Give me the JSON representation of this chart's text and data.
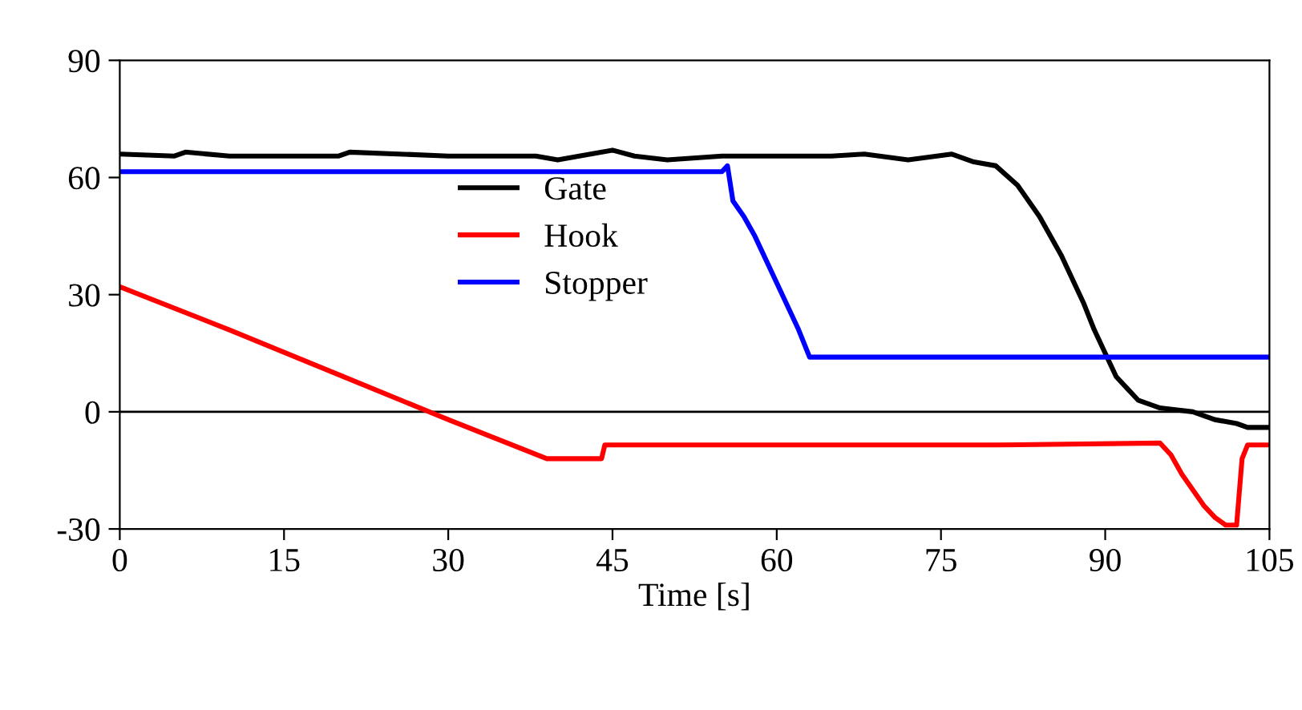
{
  "chart_data": {
    "type": "line",
    "xlabel": "Time [s]",
    "xlim": [
      0,
      105
    ],
    "xticks": [
      0,
      15,
      30,
      45,
      60,
      75,
      90,
      105
    ],
    "ylim": [
      -30,
      90
    ],
    "yticks": [
      -30,
      0,
      30,
      60,
      90
    ],
    "grid": false,
    "legend": "center left",
    "marker": "none",
    "line_style": "solid",
    "ref_lines": [
      {
        "axis": "y",
        "value": 0,
        "color": "#000000"
      }
    ],
    "series": [
      {
        "name": "Gate",
        "color": "#000000",
        "x": [
          0,
          5,
          6,
          10,
          20,
          21,
          30,
          38,
          40,
          43,
          45,
          47,
          50,
          55,
          65,
          68,
          72,
          76,
          78,
          80,
          82,
          84,
          86,
          88,
          89,
          90,
          91,
          92,
          93,
          95,
          98,
          100,
          102,
          103,
          105
        ],
        "values": [
          66,
          65.5,
          66.5,
          65.5,
          65.5,
          66.5,
          65.5,
          65.5,
          64.5,
          66,
          67,
          65.5,
          64.5,
          65.5,
          65.5,
          66,
          64.5,
          66,
          64,
          63,
          58,
          50,
          40,
          28,
          21,
          15,
          9,
          6,
          3,
          1,
          0,
          -2,
          -3,
          -4,
          -4
        ]
      },
      {
        "name": "Hook",
        "color": "#ff0000",
        "x": [
          0,
          10,
          20,
          30,
          39,
          44,
          44.3,
          60,
          80,
          95,
          96,
          97,
          99,
          100,
          101,
          102,
          102.5,
          103,
          105
        ],
        "values": [
          32,
          21,
          9.5,
          -2,
          -12,
          -12,
          -8.5,
          -8.5,
          -8.5,
          -8,
          -11,
          -16,
          -24,
          -27,
          -29,
          -29,
          -12,
          -8.5,
          -8.5
        ]
      },
      {
        "name": "Stopper",
        "color": "#0000ff",
        "x": [
          0,
          55,
          55.5,
          56,
          57,
          58,
          60,
          62,
          63,
          64,
          80,
          105
        ],
        "values": [
          61.5,
          61.5,
          63,
          54,
          50,
          45,
          33,
          21,
          14,
          14,
          14,
          14
        ]
      }
    ]
  }
}
